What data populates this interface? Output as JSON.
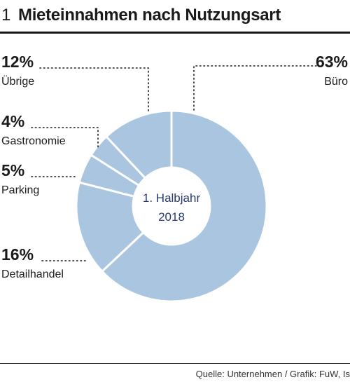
{
  "header": {
    "number": "1",
    "title": "Mieteinnahmen nach Nutzungsart"
  },
  "footer": {
    "source": "Quelle: Unternehmen / Grafik: FuW, Is"
  },
  "chart_data": {
    "type": "pie",
    "donut": true,
    "center_label": [
      "1. Halbjahr",
      "2018"
    ],
    "slices": [
      {
        "name": "Büro",
        "value": 63,
        "label": "63%"
      },
      {
        "name": "Detailhandel",
        "value": 16,
        "label": "16%"
      },
      {
        "name": "Parking",
        "value": 5,
        "label": "5%"
      },
      {
        "name": "Gastronomie",
        "value": 4,
        "label": "4%"
      },
      {
        "name": "Übrige",
        "value": 12,
        "label": "12%"
      }
    ],
    "colors": {
      "slice": "#a9c5df",
      "separator": "#ffffff",
      "center_text": "#2b3a6e"
    }
  }
}
